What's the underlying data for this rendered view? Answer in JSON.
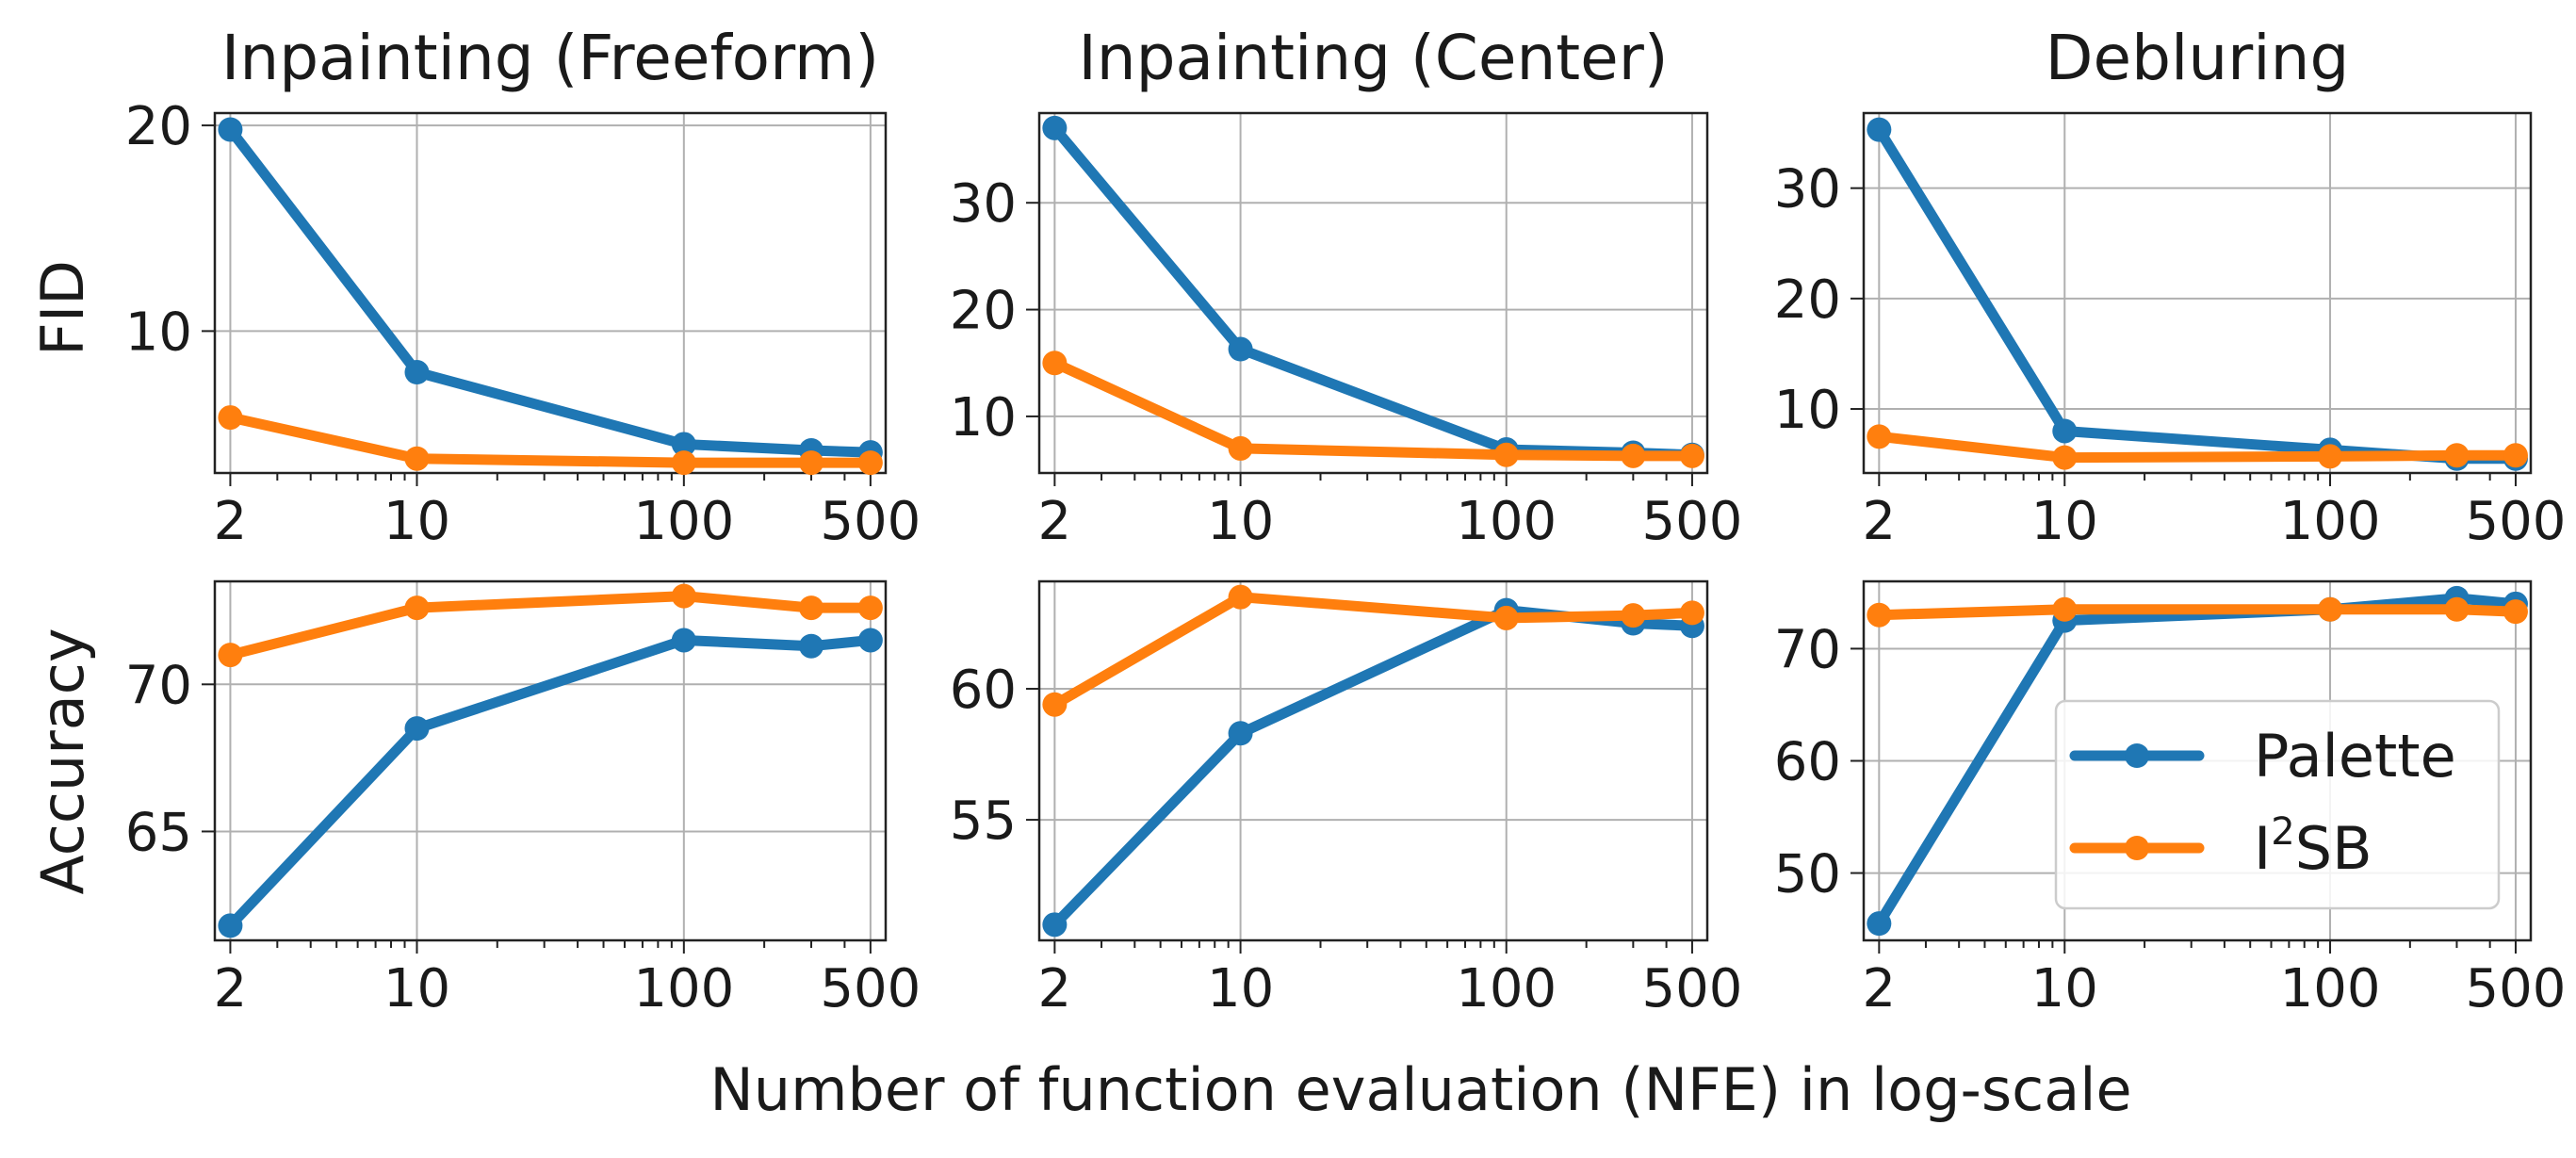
{
  "figure": {
    "xlabel": "Number of function evaluation (NFE) in log-scale",
    "row_labels": [
      "FID",
      "Accuracy"
    ],
    "legend": {
      "items": [
        {
          "label": "Palette",
          "color": "#1f77b4"
        },
        {
          "label_prefix": "I",
          "label_sup": "2",
          "label_suffix": "SB",
          "color": "#ff7f0e"
        }
      ]
    }
  },
  "chart_data": [
    {
      "type": "line",
      "title": "Inpainting (Freeform)",
      "ylabel": "FID",
      "xscale": "log",
      "x": [
        2,
        10,
        100,
        300,
        500
      ],
      "xticks": [
        2,
        10,
        100,
        500
      ],
      "ylim": [
        3.1,
        20.6
      ],
      "yticks": [
        10,
        20
      ],
      "grid": true,
      "series": [
        {
          "name": "Palette",
          "color": "#1f77b4",
          "values": [
            19.8,
            8.0,
            4.5,
            4.2,
            4.1
          ]
        },
        {
          "name": "I2SB",
          "color": "#ff7f0e",
          "values": [
            5.8,
            3.8,
            3.6,
            3.6,
            3.6
          ]
        }
      ]
    },
    {
      "type": "line",
      "title": "Inpainting (Center)",
      "ylabel": "",
      "xscale": "log",
      "x": [
        2,
        10,
        100,
        300,
        500
      ],
      "xticks": [
        2,
        10,
        100,
        500
      ],
      "ylim": [
        4.7,
        38.4
      ],
      "yticks": [
        10,
        20,
        30
      ],
      "grid": true,
      "series": [
        {
          "name": "Palette",
          "color": "#1f77b4",
          "values": [
            37.0,
            16.3,
            6.9,
            6.6,
            6.4
          ]
        },
        {
          "name": "I2SB",
          "color": "#ff7f0e",
          "values": [
            15.0,
            7.0,
            6.4,
            6.3,
            6.3
          ]
        }
      ]
    },
    {
      "type": "line",
      "title": "Debluring",
      "ylabel": "",
      "xscale": "log",
      "x": [
        2,
        10,
        100,
        300,
        500
      ],
      "xticks": [
        2,
        10,
        100,
        500
      ],
      "ylim": [
        4.2,
        36.8
      ],
      "yticks": [
        10,
        20,
        30
      ],
      "grid": true,
      "series": [
        {
          "name": "Palette",
          "color": "#1f77b4",
          "values": [
            35.3,
            8.0,
            6.3,
            5.5,
            5.5
          ]
        },
        {
          "name": "I2SB",
          "color": "#ff7f0e",
          "values": [
            7.5,
            5.6,
            5.7,
            5.8,
            5.8
          ]
        }
      ]
    },
    {
      "type": "line",
      "title": "",
      "ylabel": "Accuracy",
      "xscale": "log",
      "x": [
        2,
        10,
        100,
        300,
        500
      ],
      "xticks": [
        2,
        10,
        100,
        500
      ],
      "ylim": [
        61.3,
        73.5
      ],
      "yticks": [
        65,
        70
      ],
      "grid": true,
      "series": [
        {
          "name": "Palette",
          "color": "#1f77b4",
          "values": [
            61.8,
            68.5,
            71.5,
            71.3,
            71.5
          ]
        },
        {
          "name": "I2SB",
          "color": "#ff7f0e",
          "values": [
            71.0,
            72.6,
            73.0,
            72.6,
            72.6
          ]
        }
      ]
    },
    {
      "type": "line",
      "title": "",
      "ylabel": "",
      "xscale": "log",
      "x": [
        2,
        10,
        100,
        300,
        500
      ],
      "xticks": [
        2,
        10,
        100,
        500
      ],
      "ylim": [
        50.4,
        64.1
      ],
      "yticks": [
        55,
        60
      ],
      "grid": true,
      "series": [
        {
          "name": "Palette",
          "color": "#1f77b4",
          "values": [
            51.0,
            58.3,
            63.0,
            62.5,
            62.4
          ]
        },
        {
          "name": "I2SB",
          "color": "#ff7f0e",
          "values": [
            59.4,
            63.5,
            62.7,
            62.8,
            62.9
          ]
        }
      ]
    },
    {
      "type": "line",
      "title": "",
      "ylabel": "",
      "xscale": "log",
      "x": [
        2,
        10,
        100,
        300,
        500
      ],
      "xticks": [
        2,
        10,
        100,
        500
      ],
      "ylim": [
        44.0,
        76.0
      ],
      "yticks": [
        50,
        60,
        70
      ],
      "grid": true,
      "legend": "lower-right",
      "series": [
        {
          "name": "Palette",
          "color": "#1f77b4",
          "values": [
            45.5,
            72.5,
            73.5,
            74.5,
            74.0
          ]
        },
        {
          "name": "I2SB",
          "color": "#ff7f0e",
          "values": [
            73.0,
            73.5,
            73.5,
            73.5,
            73.3
          ]
        }
      ]
    }
  ]
}
